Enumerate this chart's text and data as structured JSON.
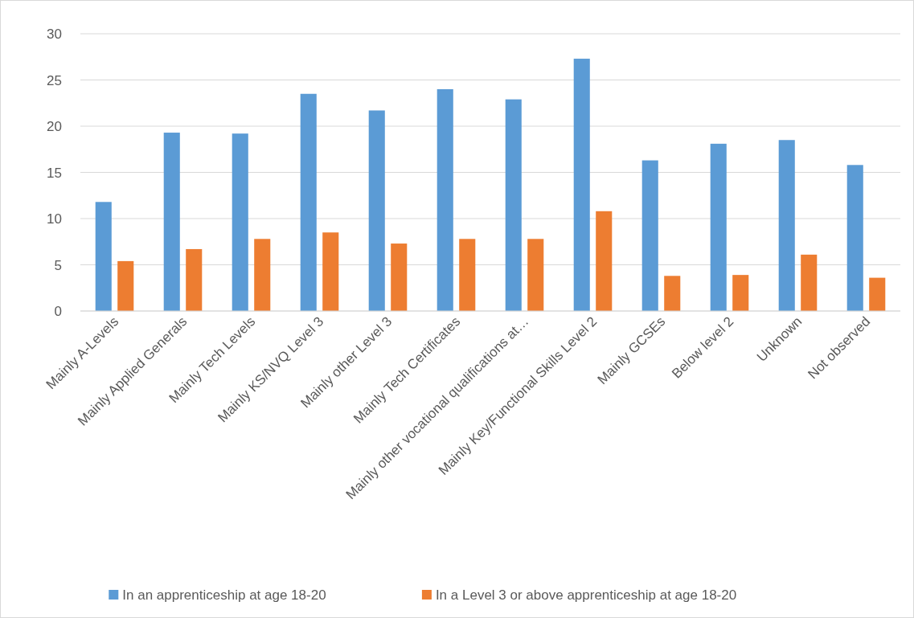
{
  "chart_data": {
    "type": "bar",
    "categories": [
      "Mainly A-Levels",
      "Mainly Applied Generals",
      "Mainly Tech Levels",
      "Mainly KS/NVQ Level 3",
      "Mainly other Level 3",
      "Mainly Tech Certificates",
      "Mainly other vocational qualifications at…",
      "Mainly Key/Functional Skills Level 2",
      "Mainly GCSEs",
      "Below level 2",
      "Unknown",
      "Not observed"
    ],
    "series": [
      {
        "name": "In an apprenticeship at age 18-20",
        "color": "#5b9bd5",
        "values": [
          11.8,
          19.3,
          19.2,
          23.5,
          21.7,
          24.0,
          22.9,
          27.3,
          16.3,
          18.1,
          18.5,
          15.8
        ]
      },
      {
        "name": "In a Level 3 or above apprenticeship at age 18-20",
        "color": "#ed7d31",
        "values": [
          5.4,
          6.7,
          7.8,
          8.5,
          7.3,
          7.8,
          7.8,
          10.8,
          3.8,
          3.9,
          6.1,
          3.6
        ]
      }
    ],
    "ylim": [
      0,
      30
    ],
    "yticks": [
      0,
      5,
      10,
      15,
      20,
      25,
      30
    ],
    "grid": "y",
    "legend": "bottom"
  }
}
